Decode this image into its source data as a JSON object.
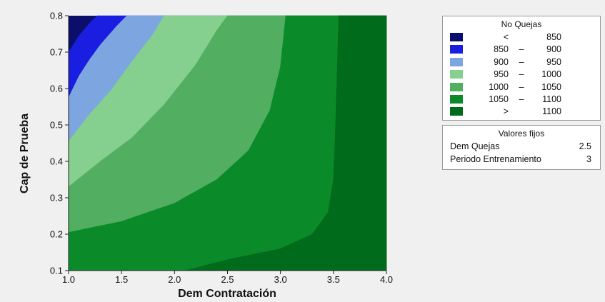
{
  "chart_data": {
    "type": "contour",
    "xlabel": "Dem Contratación",
    "ylabel": "Cap de Prueba",
    "xlim": [
      1.0,
      4.0
    ],
    "ylim": [
      0.1,
      0.8
    ],
    "x_ticks": [
      "1.0",
      "1.5",
      "2.0",
      "2.5",
      "3.0",
      "3.5",
      "4.0"
    ],
    "y_ticks": [
      "0.1",
      "0.2",
      "0.3",
      "0.4",
      "0.5",
      "0.6",
      "0.7",
      "0.8"
    ],
    "grid": false,
    "legend_position": "top-right",
    "legend": {
      "title": "No Quejas",
      "levels": [
        {
          "lo": "<",
          "dash": "",
          "hi": "850",
          "color": "#0b0f6b"
        },
        {
          "lo": "850",
          "dash": "–",
          "hi": "900",
          "color": "#1a1ee0"
        },
        {
          "lo": "900",
          "dash": "–",
          "hi": "950",
          "color": "#7da5e0"
        },
        {
          "lo": "950",
          "dash": "–",
          "hi": "1000",
          "color": "#85cf8f"
        },
        {
          "lo": "1000",
          "dash": "–",
          "hi": "1050",
          "color": "#52ae60"
        },
        {
          "lo": "1050",
          "dash": "–",
          "hi": "1100",
          "color": "#0b8a2a"
        },
        {
          "lo": ">",
          "dash": "",
          "hi": "1100",
          "color": "#006b1a"
        }
      ]
    },
    "contour_boundaries": [
      {
        "level": 850,
        "points": [
          [
            1.0,
            0.7
          ],
          [
            1.1,
            0.745
          ],
          [
            1.2,
            0.78
          ],
          [
            1.27,
            0.8
          ]
        ]
      },
      {
        "level": 900,
        "points": [
          [
            1.0,
            0.575
          ],
          [
            1.1,
            0.635
          ],
          [
            1.2,
            0.68
          ],
          [
            1.3,
            0.72
          ],
          [
            1.45,
            0.77
          ],
          [
            1.55,
            0.8
          ]
        ]
      },
      {
        "level": 950,
        "points": [
          [
            1.0,
            0.455
          ],
          [
            1.2,
            0.53
          ],
          [
            1.4,
            0.595
          ],
          [
            1.6,
            0.675
          ],
          [
            1.8,
            0.75
          ],
          [
            1.9,
            0.8
          ]
        ]
      },
      {
        "level": 1000,
        "points": [
          [
            1.0,
            0.33
          ],
          [
            1.3,
            0.4
          ],
          [
            1.6,
            0.465
          ],
          [
            1.9,
            0.555
          ],
          [
            2.2,
            0.665
          ],
          [
            2.4,
            0.76
          ],
          [
            2.5,
            0.8
          ]
        ]
      },
      {
        "level": 1050,
        "points": [
          [
            1.0,
            0.205
          ],
          [
            1.5,
            0.235
          ],
          [
            2.0,
            0.285
          ],
          [
            2.4,
            0.35
          ],
          [
            2.7,
            0.43
          ],
          [
            2.9,
            0.54
          ],
          [
            3.0,
            0.66
          ],
          [
            3.05,
            0.8
          ]
        ]
      },
      {
        "level": 1100,
        "points": [
          [
            2.1,
            0.1
          ],
          [
            2.5,
            0.13
          ],
          [
            3.0,
            0.16
          ],
          [
            3.3,
            0.2
          ],
          [
            3.45,
            0.26
          ],
          [
            3.5,
            0.35
          ],
          [
            3.52,
            0.5
          ],
          [
            3.55,
            0.8
          ]
        ]
      }
    ]
  },
  "fixed_values": {
    "title": "Valores fijos",
    "rows": [
      {
        "label": "Dem Quejas",
        "value": "2.5"
      },
      {
        "label": "Periodo Entrenamiento",
        "value": "3"
      }
    ]
  }
}
